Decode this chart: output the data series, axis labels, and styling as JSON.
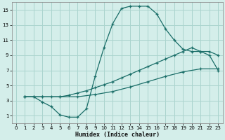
{
  "xlabel": "Humidex (Indice chaleur)",
  "bg_color": "#d4eeea",
  "grid_color": "#aad4ce",
  "line_color": "#1a6e68",
  "xlim": [
    -0.5,
    23.5
  ],
  "ylim": [
    0,
    16
  ],
  "xticks": [
    0,
    1,
    2,
    3,
    4,
    5,
    6,
    7,
    8,
    9,
    10,
    11,
    12,
    13,
    14,
    15,
    16,
    17,
    18,
    19,
    20,
    21,
    22,
    23
  ],
  "yticks": [
    1,
    3,
    5,
    7,
    9,
    11,
    13,
    15
  ],
  "line1_x": [
    1,
    2,
    3,
    4,
    5,
    6,
    7,
    8,
    9,
    10,
    11,
    12,
    13,
    14,
    15,
    16,
    17,
    18,
    19,
    20,
    21,
    22,
    23
  ],
  "line1_y": [
    3.5,
    3.5,
    2.8,
    2.2,
    1.1,
    0.8,
    0.8,
    1.9,
    6.2,
    10.0,
    13.2,
    15.2,
    15.5,
    15.5,
    15.5,
    14.5,
    12.5,
    11.0,
    9.8,
    9.5,
    9.5,
    9.0,
    7.0
  ],
  "line2_x": [
    1,
    2,
    3,
    4,
    5,
    6,
    7,
    8,
    9,
    10,
    11,
    12,
    13,
    14,
    15,
    16,
    17,
    18,
    19,
    20,
    21,
    22,
    23
  ],
  "line2_y": [
    3.5,
    3.5,
    3.5,
    3.5,
    3.5,
    3.7,
    4.0,
    4.3,
    4.7,
    5.1,
    5.5,
    6.0,
    6.5,
    7.0,
    7.5,
    8.0,
    8.5,
    9.0,
    9.5,
    10.0,
    9.5,
    9.5,
    9.0
  ],
  "line3_x": [
    1,
    3,
    5,
    7,
    9,
    11,
    13,
    15,
    17,
    19,
    21,
    23
  ],
  "line3_y": [
    3.5,
    3.5,
    3.5,
    3.5,
    3.8,
    4.2,
    4.8,
    5.5,
    6.2,
    6.8,
    7.2,
    7.2
  ]
}
